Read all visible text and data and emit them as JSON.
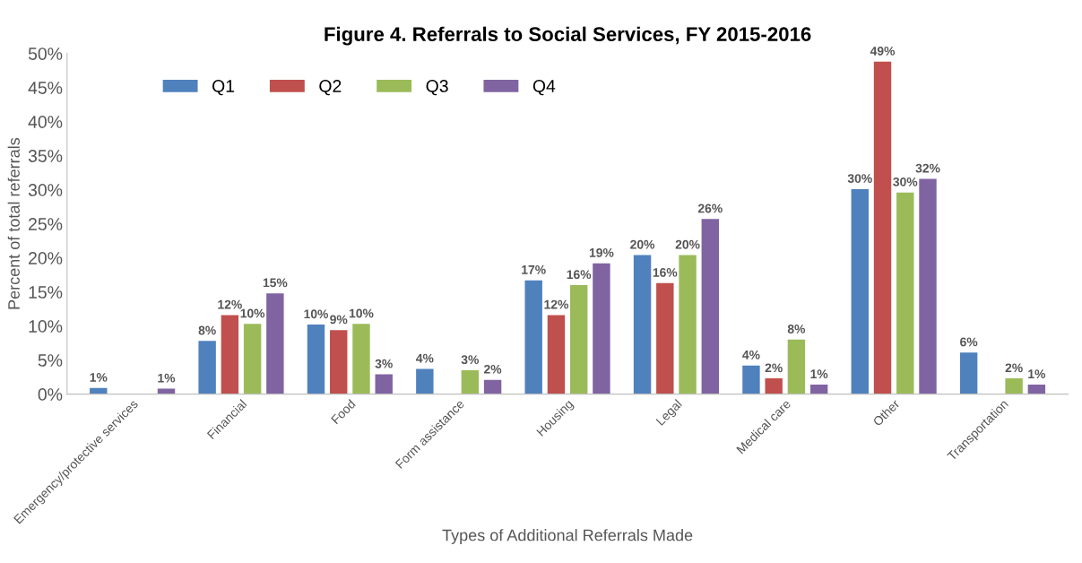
{
  "chart_data": {
    "type": "bar",
    "title": "Figure 4. Referrals to Social Services, FY 2015-2016",
    "xlabel": "Types of Additional Referrals Made",
    "ylabel": "Percent of total referrals",
    "categories": [
      "Emergency/protective services",
      "Financial",
      "Food",
      "Form assistance",
      "Housing",
      "Legal",
      "Medical care",
      "Other",
      "Transportation"
    ],
    "series": [
      {
        "name": "Q1",
        "color": "#4f81bd",
        "values": [
          0.9,
          7.8,
          10.2,
          3.7,
          16.7,
          20.4,
          4.2,
          30.1,
          6.1
        ],
        "value_labels": [
          "1%",
          "8%",
          "10%",
          "4%",
          "17%",
          "20%",
          "4%",
          "30%",
          "6%"
        ]
      },
      {
        "name": "Q2",
        "color": "#c0504d",
        "values": [
          null,
          11.6,
          9.4,
          null,
          11.6,
          16.3,
          2.3,
          48.8,
          null
        ],
        "value_labels": [
          null,
          "12%",
          "9%",
          null,
          "12%",
          "16%",
          "2%",
          "49%",
          null
        ]
      },
      {
        "name": "Q3",
        "color": "#9bbb59",
        "values": [
          null,
          10.3,
          10.3,
          3.5,
          16.0,
          20.4,
          8.0,
          29.6,
          2.3
        ],
        "value_labels": [
          null,
          "10%",
          "10%",
          "3%",
          "16%",
          "20%",
          "8%",
          "30%",
          "2%"
        ]
      },
      {
        "name": "Q4",
        "color": "#8064a2",
        "values": [
          0.8,
          14.8,
          2.9,
          2.1,
          19.2,
          25.7,
          1.4,
          31.6,
          1.4
        ],
        "value_labels": [
          "1%",
          "15%",
          "3%",
          "2%",
          "19%",
          "26%",
          "1%",
          "32%",
          "1%"
        ]
      }
    ],
    "ylim": [
      0,
      50
    ],
    "yticks": [
      {
        "value": 0,
        "label": "0%"
      },
      {
        "value": 5,
        "label": "5%"
      },
      {
        "value": 10,
        "label": "10%"
      },
      {
        "value": 15,
        "label": "15%"
      },
      {
        "value": 20,
        "label": "20%"
      },
      {
        "value": 25,
        "label": "25%"
      },
      {
        "value": 30,
        "label": "30%"
      },
      {
        "value": 35,
        "label": "35%"
      },
      {
        "value": 40,
        "label": "40%"
      },
      {
        "value": 45,
        "label": "45%"
      },
      {
        "value": 50,
        "label": "50%"
      }
    ],
    "grid": false,
    "legend": "top left"
  }
}
